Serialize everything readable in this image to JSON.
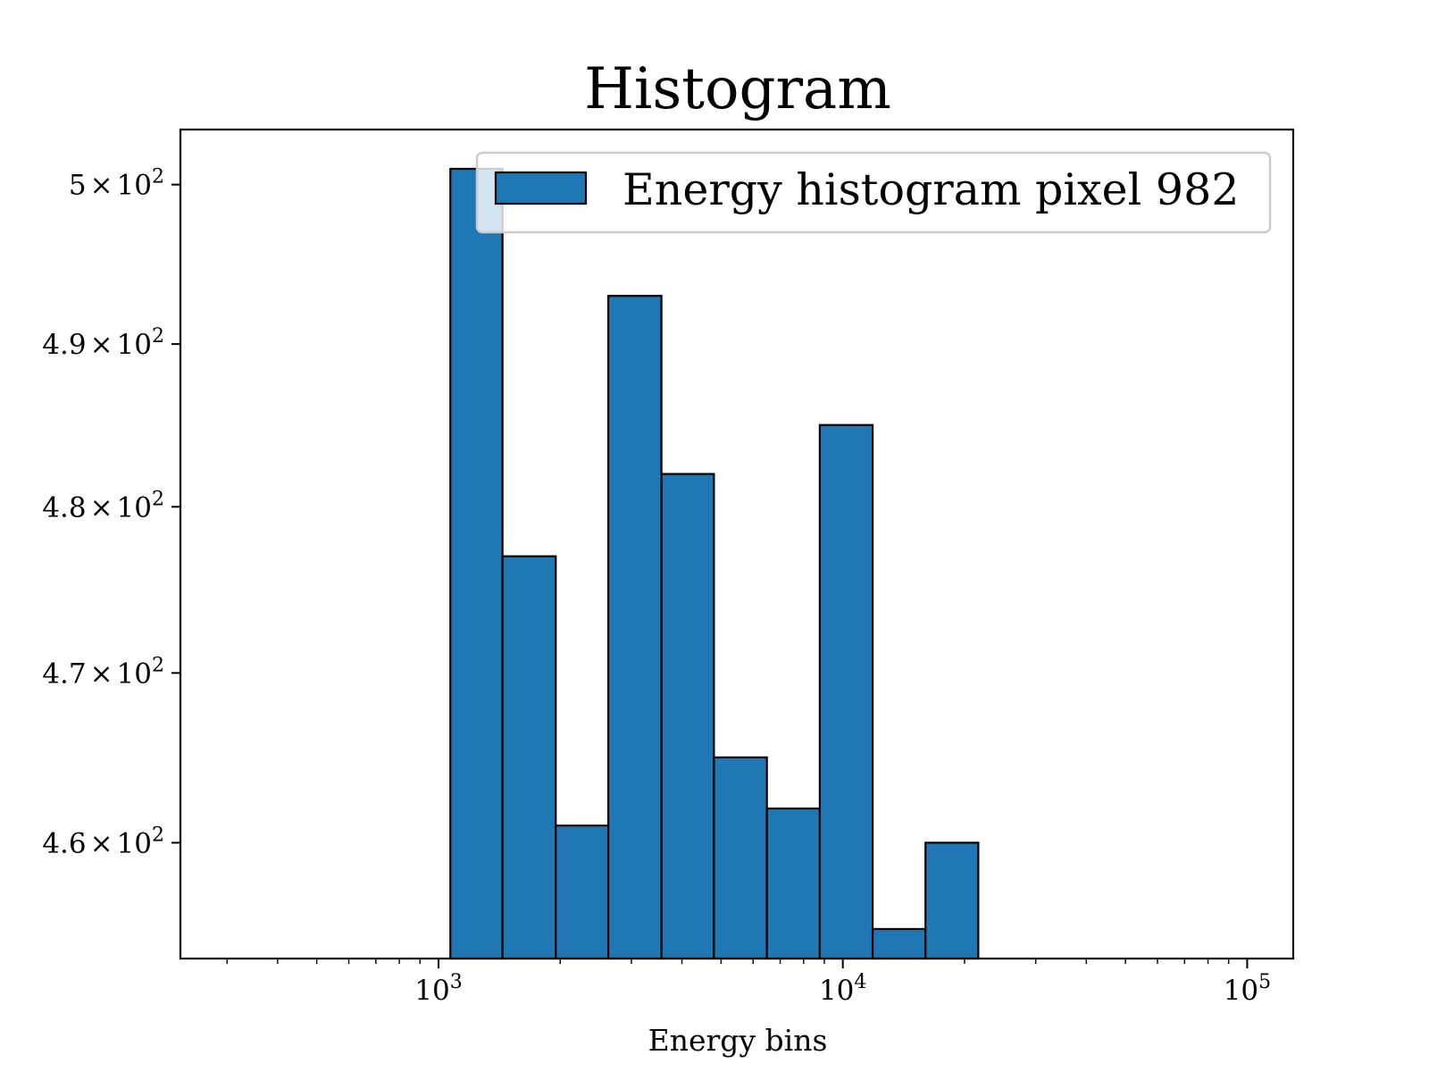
{
  "chart_data": {
    "type": "bar",
    "title": "Histogram",
    "xlabel": "Energy bins",
    "ylabel": "",
    "x_scale": "log",
    "y_scale": "log",
    "xlim": [
      230,
      130000
    ],
    "ylim": [
      453.3,
      503.5
    ],
    "bin_edges": [
      1070,
      1440,
      1950,
      2630,
      3560,
      4800,
      6490,
      8770,
      11850,
      16010,
      21630
    ],
    "counts": [
      501,
      477,
      461,
      493,
      482,
      465,
      462,
      485,
      455,
      460
    ],
    "series": [
      {
        "name": "Energy histogram pixel 982",
        "color": "#1f77b4",
        "edgecolor": "#000000"
      }
    ],
    "x_ticks": [
      {
        "value": 1000,
        "base": "10",
        "exp": "3"
      },
      {
        "value": 10000,
        "base": "10",
        "exp": "4"
      },
      {
        "value": 100000,
        "base": "10",
        "exp": "5"
      }
    ],
    "y_ticks": [
      {
        "value": 460,
        "mantissa": "4.6",
        "times": "×",
        "base": "10",
        "exp": "2"
      },
      {
        "value": 470,
        "mantissa": "4.7",
        "times": "×",
        "base": "10",
        "exp": "2"
      },
      {
        "value": 480,
        "mantissa": "4.8",
        "times": "×",
        "base": "10",
        "exp": "2"
      },
      {
        "value": 490,
        "mantissa": "4.9",
        "times": "×",
        "base": "10",
        "exp": "2"
      },
      {
        "value": 500,
        "mantissa": "5",
        "times": "×",
        "base": "10",
        "exp": "2"
      }
    ],
    "legend": {
      "position": "upper right",
      "entries": [
        "Energy histogram pixel 982"
      ]
    },
    "grid": false
  }
}
